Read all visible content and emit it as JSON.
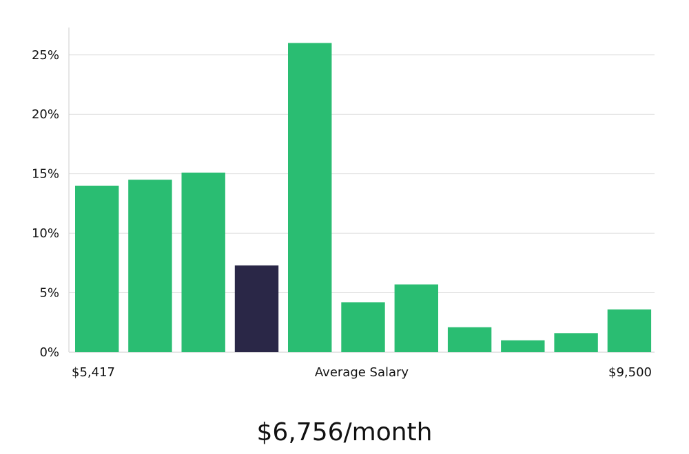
{
  "chart_data": {
    "type": "bar",
    "values": [
      14.0,
      14.5,
      15.1,
      7.3,
      26.0,
      4.2,
      5.7,
      2.1,
      1.0,
      1.6,
      3.6
    ],
    "highlight_index": 3,
    "ylim": [
      0,
      27.3
    ],
    "yticks": [
      "0%",
      "5%",
      "10%",
      "15%",
      "20%",
      "25%"
    ],
    "ytick_values": [
      0,
      5,
      10,
      15,
      20,
      25
    ],
    "x_left_label": "$5,417",
    "x_center_label": "Average Salary",
    "x_right_label": "$9,500",
    "grid": true,
    "colors": {
      "bar": "#2abd72",
      "highlight": "#2a2747",
      "grid": "#dddddd",
      "axis": "#cccccc"
    }
  },
  "headline": "$6,756/month"
}
